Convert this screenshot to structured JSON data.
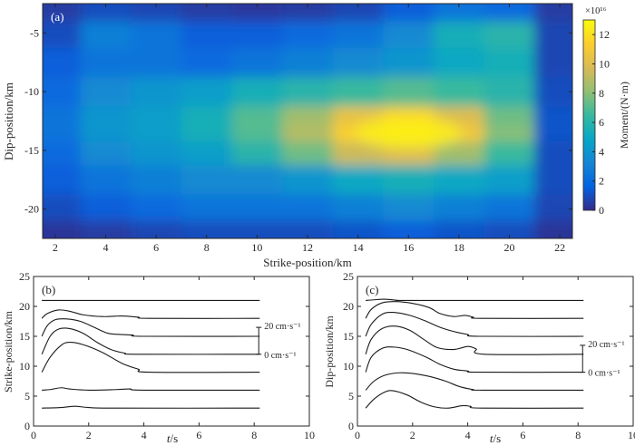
{
  "chart_data": [
    {
      "id": "a",
      "type": "heatmap",
      "panel_label": "(a)",
      "xlabel": "Strike-position/km",
      "ylabel": "Dip-position/km",
      "xlim": [
        1.5,
        22.5
      ],
      "ylim": [
        -22.5,
        -2.5
      ],
      "xticks": [
        2,
        4,
        6,
        8,
        10,
        12,
        14,
        16,
        18,
        20,
        22
      ],
      "yticks": [
        -5,
        -10,
        -15,
        -20
      ],
      "colorbar": {
        "label": "Moment/(N·m)",
        "exponent_label": "×10¹⁶",
        "range": [
          0,
          13
        ],
        "ticks": [
          0,
          2,
          4,
          6,
          8,
          10,
          12
        ],
        "colors": [
          "#352a87",
          "#0363e1",
          "#1485d4",
          "#06a7c6",
          "#38b99e",
          "#92bf73",
          "#d9ba56",
          "#fcce2e",
          "#f9fb0e"
        ]
      },
      "peak": {
        "strike": 16.0,
        "dip": -13.5,
        "value": 12.5
      },
      "x": [
        2,
        4,
        6,
        8,
        10,
        12,
        14,
        16,
        18,
        20,
        22
      ],
      "y": [
        -3,
        -5,
        -7.5,
        -10,
        -12.5,
        -13.5,
        -15,
        -17.5,
        -20,
        -22
      ],
      "z": [
        [
          0.5,
          1.0,
          0.8,
          0.5,
          0.4,
          0.5,
          0.8,
          1.5,
          2.5,
          2.0,
          0.5
        ],
        [
          1.0,
          3.0,
          2.5,
          1.5,
          1.5,
          2.0,
          2.5,
          3.5,
          5.5,
          6.0,
          0.8
        ],
        [
          1.5,
          2.5,
          2.5,
          2.0,
          2.5,
          3.0,
          3.5,
          4.0,
          5.0,
          5.5,
          0.8
        ],
        [
          2.0,
          3.5,
          4.0,
          4.5,
          5.5,
          6.0,
          6.5,
          7.0,
          6.5,
          6.0,
          1.0
        ],
        [
          2.5,
          4.0,
          4.5,
          5.5,
          7.0,
          8.5,
          10.5,
          11.5,
          10.0,
          7.5,
          1.2
        ],
        [
          2.5,
          4.0,
          4.5,
          5.5,
          7.0,
          9.0,
          11.5,
          12.5,
          11.0,
          8.0,
          1.2
        ],
        [
          2.0,
          3.5,
          4.0,
          4.5,
          6.0,
          7.5,
          9.5,
          10.0,
          8.5,
          6.5,
          1.0
        ],
        [
          1.5,
          2.5,
          3.0,
          3.5,
          3.5,
          4.0,
          5.0,
          5.5,
          5.0,
          4.5,
          1.0
        ],
        [
          1.0,
          1.5,
          2.0,
          2.5,
          2.5,
          2.5,
          3.0,
          3.5,
          3.0,
          2.5,
          0.8
        ],
        [
          0.3,
          0.5,
          0.8,
          1.0,
          1.0,
          1.0,
          1.2,
          1.5,
          1.2,
          1.0,
          0.3
        ]
      ]
    },
    {
      "id": "b",
      "type": "line",
      "panel_label": "(b)",
      "xlabel_italic": "t",
      "xlabel_unit": "/s",
      "ylabel": "Strike-position/km",
      "xlim": [
        0,
        10
      ],
      "ylim": [
        0,
        25
      ],
      "xticks": [
        0,
        2,
        4,
        6,
        8,
        10
      ],
      "yticks": [
        0,
        5,
        10,
        15,
        20,
        25
      ],
      "scale_bar": {
        "top_label": "20 cm·s⁻¹",
        "bottom_label": "0 cm·s⁻¹",
        "from": 12,
        "to": 16.5
      },
      "series": [
        {
          "baseline": 3,
          "points": [
            [
              0.3,
              3
            ],
            [
              1,
              3.1
            ],
            [
              1.5,
              3.3
            ],
            [
              2,
              3.1
            ],
            [
              3,
              3
            ],
            [
              8.2,
              3
            ]
          ]
        },
        {
          "baseline": 6,
          "points": [
            [
              0.3,
              6
            ],
            [
              0.6,
              6.1
            ],
            [
              1,
              6.4
            ],
            [
              1.3,
              6.2
            ],
            [
              2,
              6
            ],
            [
              3,
              6.1
            ],
            [
              3.5,
              6.2
            ],
            [
              4,
              6
            ],
            [
              8.2,
              6
            ]
          ]
        },
        {
          "baseline": 9,
          "points": [
            [
              0.3,
              9
            ],
            [
              0.6,
              11.5
            ],
            [
              1,
              13.5
            ],
            [
              1.3,
              14
            ],
            [
              1.8,
              13.6
            ],
            [
              2.5,
              12.3
            ],
            [
              3.2,
              10.5
            ],
            [
              3.8,
              9.5
            ],
            [
              4.2,
              9
            ],
            [
              8.2,
              9
            ]
          ]
        },
        {
          "baseline": 12,
          "points": [
            [
              0.3,
              12
            ],
            [
              0.6,
              15
            ],
            [
              0.9,
              16.2
            ],
            [
              1.3,
              16.3
            ],
            [
              1.8,
              15.5
            ],
            [
              2.3,
              14
            ],
            [
              2.8,
              12.8
            ],
            [
              3.3,
              12.2
            ],
            [
              3.8,
              12
            ],
            [
              8.2,
              12
            ]
          ]
        },
        {
          "baseline": 15,
          "points": [
            [
              0.3,
              15
            ],
            [
              0.5,
              16.8
            ],
            [
              0.8,
              17.8
            ],
            [
              1.2,
              17.9
            ],
            [
              1.7,
              17.5
            ],
            [
              2.2,
              16.5
            ],
            [
              2.7,
              15.5
            ],
            [
              3.2,
              15.3
            ],
            [
              3.6,
              15.2
            ],
            [
              4,
              15
            ],
            [
              8.2,
              15
            ]
          ]
        },
        {
          "baseline": 18,
          "points": [
            [
              0.3,
              18
            ],
            [
              0.5,
              18.8
            ],
            [
              0.9,
              19.4
            ],
            [
              1.3,
              19.2
            ],
            [
              1.8,
              18.6
            ],
            [
              2.5,
              18.3
            ],
            [
              3.2,
              18.4
            ],
            [
              3.8,
              18.2
            ],
            [
              4.2,
              18
            ],
            [
              8.2,
              18
            ]
          ]
        },
        {
          "baseline": 21,
          "points": [
            [
              0.3,
              21
            ],
            [
              8.2,
              21
            ]
          ]
        }
      ]
    },
    {
      "id": "c",
      "type": "line",
      "panel_label": "(c)",
      "xlabel_italic": "t",
      "xlabel_unit": "/s",
      "ylabel": "Dip-position/km",
      "xlim": [
        0,
        10
      ],
      "ylim": [
        0,
        25
      ],
      "xticks": [
        0,
        2,
        4,
        6,
        8,
        10
      ],
      "yticks": [
        0,
        5,
        10,
        15,
        20,
        25
      ],
      "scale_bar": {
        "top_label": "20 cm·s⁻¹",
        "bottom_label": "0 cm·s⁻¹",
        "from": 9,
        "to": 13.5
      },
      "series": [
        {
          "baseline": 3,
          "points": [
            [
              0.3,
              3
            ],
            [
              0.6,
              4.5
            ],
            [
              1,
              5.7
            ],
            [
              1.3,
              5.9
            ],
            [
              1.8,
              5.2
            ],
            [
              2.3,
              4
            ],
            [
              2.8,
              3.2
            ],
            [
              3.3,
              3
            ],
            [
              3.8,
              3.4
            ],
            [
              4.1,
              3.3
            ],
            [
              4.5,
              3
            ],
            [
              8.2,
              3
            ]
          ]
        },
        {
          "baseline": 6,
          "points": [
            [
              0.3,
              6
            ],
            [
              0.6,
              7.5
            ],
            [
              1,
              8.5
            ],
            [
              1.5,
              8.9
            ],
            [
              2,
              8.8
            ],
            [
              2.6,
              8.3
            ],
            [
              3.2,
              7.5
            ],
            [
              3.7,
              6.6
            ],
            [
              4.2,
              6.1
            ],
            [
              4.5,
              6
            ],
            [
              8.2,
              6
            ]
          ]
        },
        {
          "baseline": 9,
          "points": [
            [
              0.3,
              9
            ],
            [
              0.5,
              11.5
            ],
            [
              0.9,
              13
            ],
            [
              1.3,
              13.2
            ],
            [
              1.8,
              12.8
            ],
            [
              2.5,
              11.5
            ],
            [
              3,
              10.3
            ],
            [
              3.5,
              9.5
            ],
            [
              4,
              9.2
            ],
            [
              4.4,
              9
            ],
            [
              8.2,
              9
            ]
          ]
        },
        {
          "baseline": 12,
          "points": [
            [
              0.3,
              12
            ],
            [
              0.5,
              14.5
            ],
            [
              0.9,
              16.3
            ],
            [
              1.4,
              16.7
            ],
            [
              1.9,
              16
            ],
            [
              2.4,
              14.5
            ],
            [
              2.9,
              13.1
            ],
            [
              3.5,
              12.8
            ],
            [
              4,
              13.3
            ],
            [
              4.3,
              12.9
            ],
            [
              4.6,
              12
            ],
            [
              8.2,
              12
            ]
          ]
        },
        {
          "baseline": 15,
          "points": [
            [
              0.3,
              15
            ],
            [
              0.5,
              17
            ],
            [
              0.9,
              18.7
            ],
            [
              1.3,
              19
            ],
            [
              1.9,
              18.5
            ],
            [
              2.5,
              17.5
            ],
            [
              3,
              16.5
            ],
            [
              3.5,
              15.8
            ],
            [
              4,
              15.3
            ],
            [
              4.4,
              15
            ],
            [
              8.2,
              15
            ]
          ]
        },
        {
          "baseline": 18,
          "points": [
            [
              0.3,
              18
            ],
            [
              0.5,
              19.5
            ],
            [
              0.9,
              20.6
            ],
            [
              1.4,
              20.8
            ],
            [
              2,
              20.5
            ],
            [
              2.6,
              19.8
            ],
            [
              3,
              18.8
            ],
            [
              3.5,
              18.3
            ],
            [
              3.9,
              18.5
            ],
            [
              4.2,
              18.2
            ],
            [
              4.5,
              18
            ],
            [
              8.2,
              18
            ]
          ]
        },
        {
          "baseline": 21,
          "points": [
            [
              0.3,
              21
            ],
            [
              0.6,
              21.1
            ],
            [
              1,
              21.2
            ],
            [
              1.5,
              21.0
            ],
            [
              2,
              21
            ],
            [
              8.2,
              21
            ]
          ]
        }
      ]
    }
  ]
}
